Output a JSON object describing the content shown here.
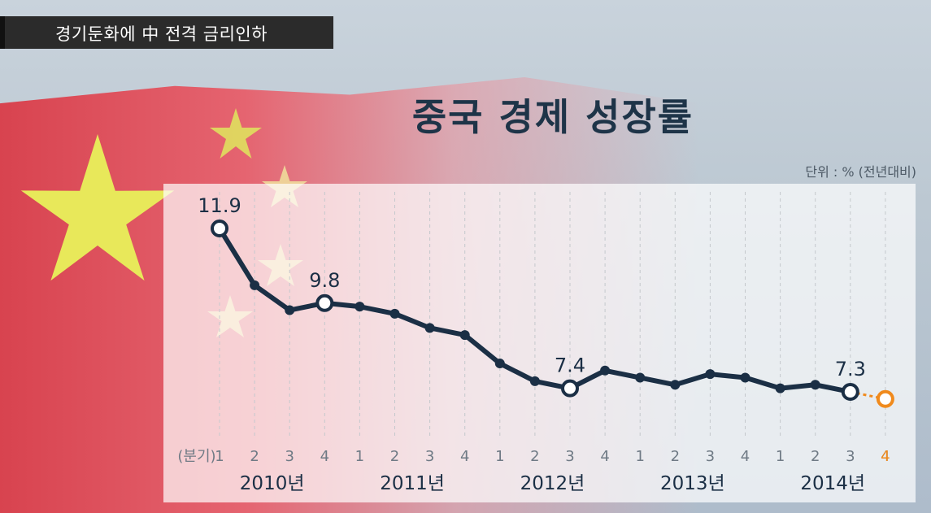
{
  "caption": "경기둔화에 中 전격 금리인하",
  "unit": "단위 : % (전년대비)",
  "colors": {
    "line": "#1b2f45",
    "forecast": "#f08a1c",
    "flag_red": "#d8434f",
    "star": "#e8e85a"
  },
  "chart_data": {
    "type": "line",
    "title": "중국 경제 성장률",
    "x_axis_label": "(분기)",
    "quarter_labels": [
      "1",
      "2",
      "3",
      "4",
      "1",
      "2",
      "3",
      "4",
      "1",
      "2",
      "3",
      "4",
      "1",
      "2",
      "3",
      "4",
      "1",
      "2",
      "3",
      "4"
    ],
    "year_labels": [
      "2010년",
      "2011년",
      "2012년",
      "2013년",
      "2014년"
    ],
    "values": [
      11.9,
      10.3,
      9.6,
      9.8,
      9.7,
      9.5,
      9.1,
      8.9,
      8.1,
      7.6,
      7.4,
      7.9,
      7.7,
      7.5,
      7.8,
      7.7,
      7.4,
      7.5,
      7.3
    ],
    "labeled_points": [
      {
        "index": 0,
        "label": "11.9"
      },
      {
        "index": 3,
        "label": "9.8"
      },
      {
        "index": 10,
        "label": "7.4"
      },
      {
        "index": 18,
        "label": "7.3"
      }
    ],
    "forecast_value": 7.1,
    "forecast_label": "4"
  }
}
